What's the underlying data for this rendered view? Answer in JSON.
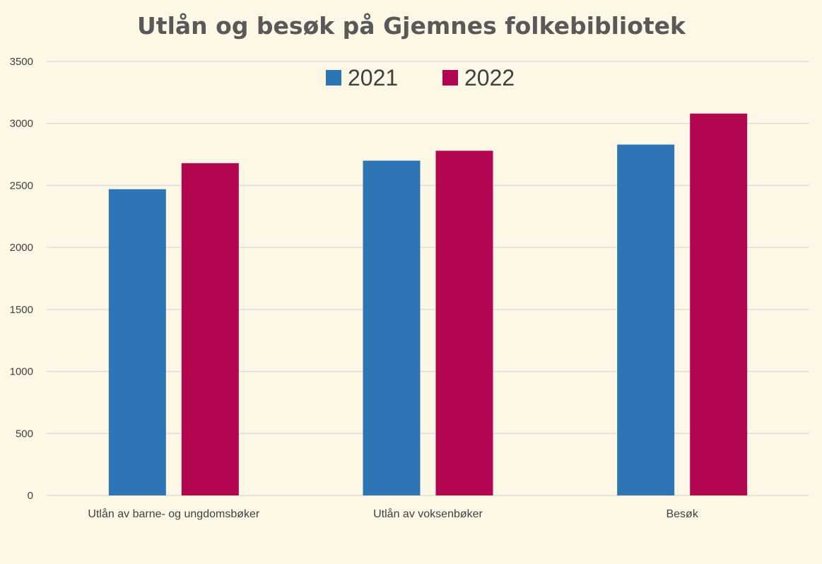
{
  "chart_data": {
    "type": "bar",
    "title": "Utlån og besøk på Gjemnes folkebibliotek",
    "categories": [
      "Utlån av barne- og ungdomsbøker",
      "Utlån av voksenbøker",
      "Besøk"
    ],
    "series": [
      {
        "name": "2021",
        "values": [
          2470,
          2700,
          2830
        ],
        "color": "#2e75b6"
      },
      {
        "name": "2022",
        "values": [
          2680,
          2780,
          3080
        ],
        "color": "#b30651"
      }
    ],
    "ylim": [
      0,
      3500
    ],
    "yticks": [
      0,
      500,
      1000,
      1500,
      2000,
      2500,
      3000,
      3500
    ],
    "grid": true,
    "legend_position": "top-center",
    "colors": {
      "background": "#fdf8e6",
      "grid": "#d9d9d9",
      "title": "#595959",
      "text": "#404040"
    }
  }
}
